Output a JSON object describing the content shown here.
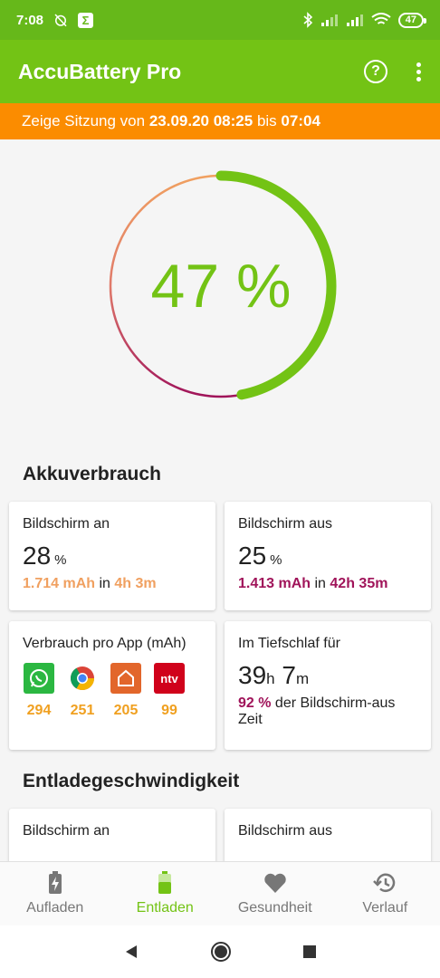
{
  "status": {
    "time": "7:08",
    "battery": "47"
  },
  "app_bar": {
    "title": "AccuBattery Pro"
  },
  "session": {
    "prefix": "Zeige Sitzung von",
    "start": "23.09.20 08:25",
    "mid": "bis",
    "end": "07:04"
  },
  "gauge": {
    "value_text": "47 %",
    "fraction": 0.47
  },
  "usage": {
    "title": "Akkuverbrauch",
    "screen_on": {
      "label": "Bildschirm an",
      "percent": "28",
      "unit": "%",
      "mah": "1.714 mAh",
      "in": "in",
      "duration": "4h 3m"
    },
    "screen_off": {
      "label": "Bildschirm aus",
      "percent": "25",
      "unit": "%",
      "mah": "1.413 mAh",
      "in": "in",
      "duration": "42h 35m"
    },
    "per_app": {
      "label": "Verbrauch pro App (mAh)",
      "apps": [
        {
          "icon": "whatsapp-icon",
          "value": "294",
          "color": "#2bb741"
        },
        {
          "icon": "chrome-icon",
          "value": "251",
          "color": "#db4437"
        },
        {
          "icon": "home-icon",
          "value": "205",
          "color": "#e2662b"
        },
        {
          "icon": "ntv-icon",
          "value": "99",
          "color": "#d0021b",
          "text": "ntv"
        }
      ]
    },
    "deep_sleep": {
      "label": "Im Tiefschlaf für",
      "hours": "39",
      "h_unit": "h",
      "minutes": "7",
      "m_unit": "m",
      "percent": "92 %",
      "desc": "der Bildschirm-aus Zeit"
    }
  },
  "discharge": {
    "title": "Entladegeschwindigkeit",
    "screen_on": {
      "label": "Bildschirm an"
    },
    "screen_off": {
      "label": "Bildschirm aus"
    }
  },
  "nav": {
    "items": [
      {
        "label": "Aufladen",
        "icon": "charging-battery-icon"
      },
      {
        "label": "Entladen",
        "icon": "battery-icon"
      },
      {
        "label": "Gesundheit",
        "icon": "heart-icon"
      },
      {
        "label": "Verlauf",
        "icon": "history-icon"
      }
    ],
    "active": "Entladen"
  },
  "colors": {
    "green": "#73c315",
    "orange": "#fb8c00",
    "berry": "#a0145a",
    "peach": "#f0a060"
  }
}
